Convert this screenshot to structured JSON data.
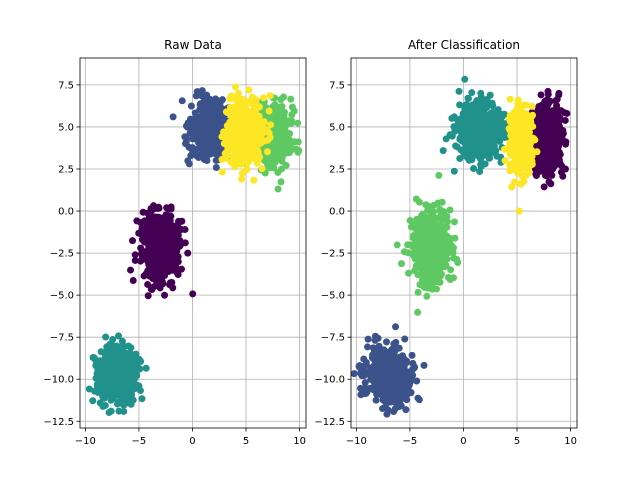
{
  "chart_data": [
    {
      "type": "scatter",
      "title": "Raw Data",
      "xlabel": "",
      "ylabel": "",
      "xlim": [
        -10.5,
        10.6
      ],
      "ylim": [
        -12.9,
        9.1
      ],
      "xticks": [
        -10,
        -5,
        0,
        5,
        10
      ],
      "xtick_labels": [
        "−10",
        "−5",
        "0",
        "5",
        "10"
      ],
      "yticks": [
        -12.5,
        -10.0,
        -7.5,
        -5.0,
        -2.5,
        0.0,
        2.5,
        5.0,
        7.5
      ],
      "ytick_labels": [
        "−12.5",
        "−10.0",
        "−7.5",
        "−5.0",
        "−2.5",
        "0.0",
        "2.5",
        "5.0",
        "7.5"
      ],
      "grid": true,
      "colormap": "viridis",
      "series": [
        {
          "color": "#440154",
          "center": [
            -3.0,
            -2.2
          ],
          "spread": [
            0.9,
            1.1
          ],
          "n": 500
        },
        {
          "color": "#3b528b",
          "center": [
            1.6,
            4.9
          ],
          "spread": [
            1.0,
            0.9
          ],
          "n": 500
        },
        {
          "color": "#21918c",
          "center": [
            -7.0,
            -9.7
          ],
          "spread": [
            1.0,
            0.8
          ],
          "n": 500
        },
        {
          "color": "#5ec962",
          "center": [
            7.3,
            4.6
          ],
          "spread": [
            0.9,
            0.9
          ],
          "n": 500
        },
        {
          "color": "#fde725",
          "center": [
            4.9,
            4.6
          ],
          "spread": [
            0.9,
            1.0
          ],
          "n": 500
        }
      ]
    },
    {
      "type": "scatter",
      "title": "After Classification",
      "xlabel": "",
      "ylabel": "",
      "xlim": [
        -10.5,
        10.6
      ],
      "ylim": [
        -12.9,
        9.1
      ],
      "xticks": [
        -10,
        -5,
        0,
        5,
        10
      ],
      "xtick_labels": [
        "−10",
        "−5",
        "0",
        "5",
        "10"
      ],
      "yticks": [
        -12.5,
        -10.0,
        -7.5,
        -5.0,
        -2.5,
        0.0,
        2.5,
        5.0,
        7.5
      ],
      "ytick_labels": [
        "−12.5",
        "−10.0",
        "−7.5",
        "−5.0",
        "−2.5",
        "0.0",
        "2.5",
        "5.0",
        "7.5"
      ],
      "grid": true,
      "colormap": "viridis",
      "series": [
        {
          "color": "#440154",
          "center": [
            7.9,
            4.3
          ],
          "spread": [
            0.7,
            1.0
          ],
          "n": 500
        },
        {
          "color": "#3b528b",
          "center": [
            -7.0,
            -9.7
          ],
          "spread": [
            1.0,
            0.8
          ],
          "n": 500
        },
        {
          "color": "#21918c",
          "center": [
            1.6,
            4.9
          ],
          "spread": [
            1.0,
            0.9
          ],
          "n": 500
        },
        {
          "color": "#5ec962",
          "center": [
            -3.0,
            -2.2
          ],
          "spread": [
            0.9,
            1.1
          ],
          "n": 500
        },
        {
          "color": "#fde725",
          "center": [
            5.3,
            4.2
          ],
          "spread": [
            0.5,
            1.0
          ],
          "n": 500
        }
      ]
    }
  ]
}
